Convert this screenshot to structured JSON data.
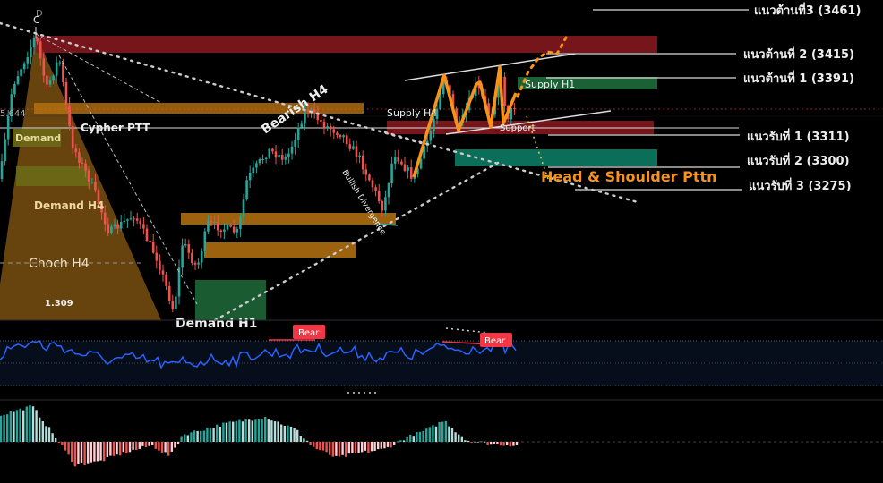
{
  "chart_data": {
    "type": "candlestick",
    "price_ylim": [
      3200,
      3470
    ],
    "resistance_levels": [
      {
        "label": "แนวต้านที่3 (3461)",
        "value": 3461
      },
      {
        "label": "แนวต้านที่ 2 (3415)",
        "value": 3415
      },
      {
        "label": "แนวต้านที่ 1 (3391)",
        "value": 3391
      }
    ],
    "support_levels": [
      {
        "label": "แนวรับที่ 1 (3311)",
        "value": 3311
      },
      {
        "label": "แนวรับที่ 2 (3300)",
        "value": 3300
      },
      {
        "label": "แนวรับที่ 3 (3275)",
        "value": 3275
      }
    ],
    "annotations": {
      "c_label": "C",
      "d_label": "D",
      "left_price": "5.644",
      "demand": "Demand",
      "cypher": "Cypher PTT",
      "demand_h4": "Demand H4",
      "choch_h4": "Choch H4",
      "ratio": "1.309",
      "demand_h1": "Demand H1",
      "bearish_h4": "Bearish H4",
      "bullish_div": "Bullish Divergence",
      "supply_h4": "Supply H4",
      "supply_h1": "Supply H1",
      "support": "Support",
      "hs": "Head & Shoulder Pttn"
    },
    "rsi_badges": [
      "Bear",
      "Bear"
    ],
    "colors": {
      "bull": "#26a69a",
      "bear": "#ef5350",
      "orange": "#f7931a",
      "zone_red": "#8b1a1f",
      "zone_orange": "#b8730f",
      "zone_green": "#1e6b3b",
      "rsi_line": "#2962ff",
      "bear_badge": "#f23645"
    }
  }
}
